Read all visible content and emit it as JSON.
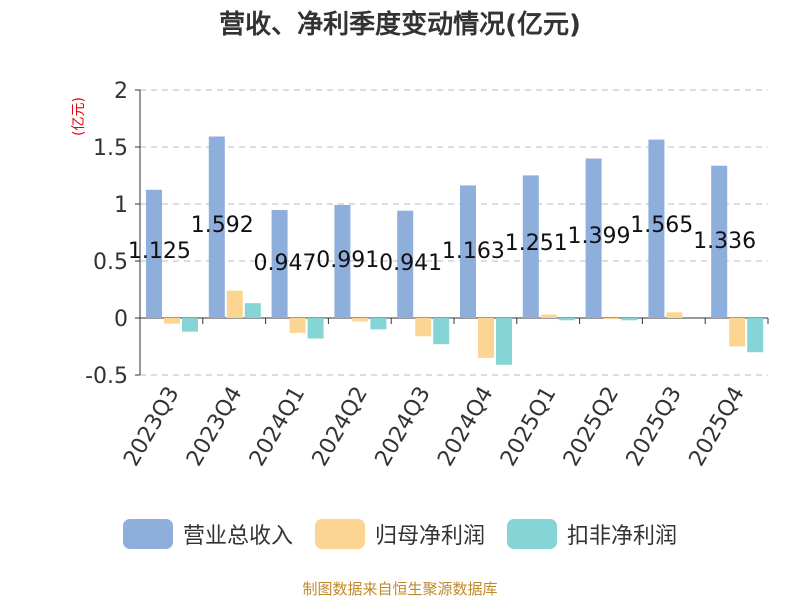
{
  "chart_data": {
    "type": "bar",
    "title": "营收、净利季度变动情况(亿元)",
    "ylabel": "(亿元)",
    "xlabel": "",
    "ylim": [
      -0.5,
      2
    ],
    "yticks": [
      2,
      1.5,
      1,
      0.5,
      0,
      -0.5
    ],
    "ytick_labels": [
      "2",
      "1.5",
      "1",
      "0.5",
      "0",
      "-0.5"
    ],
    "grid": true,
    "categories": [
      "2023Q3",
      "2023Q4",
      "2024Q1",
      "2024Q2",
      "2024Q3",
      "2024Q4",
      "2025Q1",
      "2025Q2",
      "2025Q3",
      "2025Q4"
    ],
    "series": [
      {
        "name": "营业总收入",
        "color": "#8eaedc",
        "values": [
          1.125,
          1.592,
          0.947,
          0.991,
          0.941,
          1.163,
          1.251,
          1.399,
          1.565,
          1.336
        ],
        "labels": [
          "1.125",
          "1.592",
          "0.947",
          "0.991",
          "0.941",
          "1.163",
          "1.251",
          "1.399",
          "1.565",
          "1.336"
        ]
      },
      {
        "name": "归母净利润",
        "color": "#fdd592",
        "values": [
          -0.05,
          0.24,
          -0.13,
          -0.03,
          -0.16,
          -0.35,
          0.03,
          -0.01,
          0.05,
          -0.25
        ]
      },
      {
        "name": "扣非净利润",
        "color": "#85d4d6",
        "values": [
          -0.12,
          0.13,
          -0.18,
          -0.1,
          -0.23,
          -0.41,
          -0.02,
          -0.02,
          0.0,
          -0.3
        ]
      }
    ],
    "legend_position": "bottom"
  },
  "source_text": "制图数据来自恒生聚源数据库"
}
